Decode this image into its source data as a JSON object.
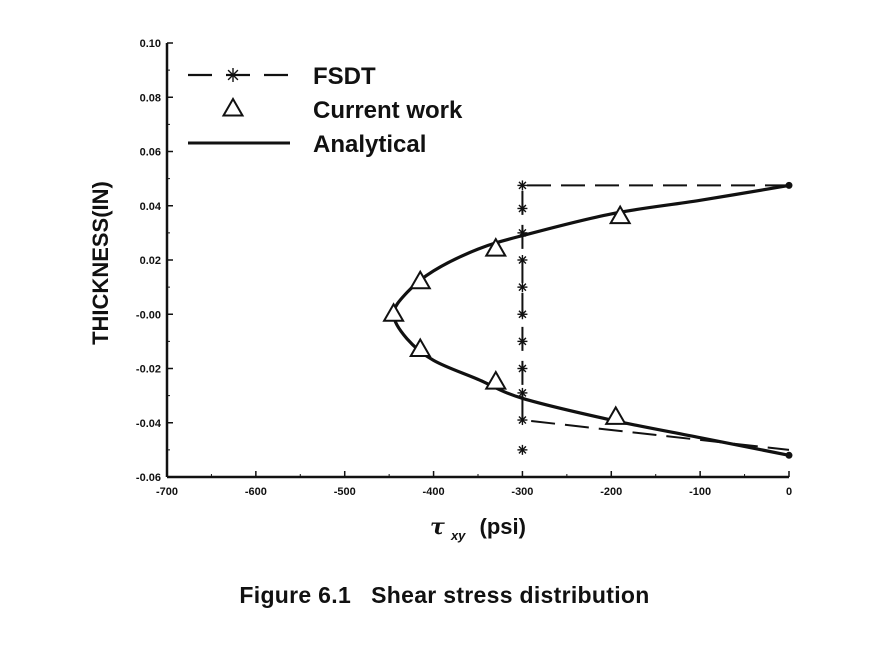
{
  "chart_data": {
    "type": "line",
    "xlabel_symbol": "τ",
    "xlabel_subscript": "xy",
    "xlabel_unit": "(psi)",
    "ylabel": "THICKNESS(IN)",
    "xlim": [
      -700,
      0
    ],
    "ylim": [
      -0.06,
      0.1
    ],
    "x_ticks": [
      -700,
      -600,
      -500,
      -400,
      -300,
      -200,
      -100,
      0
    ],
    "x_tick_labels": [
      "-700",
      "-600",
      "-500",
      "-400",
      "-300",
      "-200",
      "-100",
      "0"
    ],
    "y_ticks": [
      -0.06,
      -0.04,
      -0.02,
      0.0,
      0.02,
      0.04,
      0.06,
      0.08,
      0.1
    ],
    "y_tick_labels": [
      "-0.06",
      "-0.04",
      "-0.02",
      "-0.00",
      "0.02",
      "0.04",
      "0.06",
      "0.08",
      "0.10"
    ],
    "grid": false,
    "legend_position": "top-left",
    "series": [
      {
        "name": "FSDT",
        "style": "dashed-star",
        "x": [
          0,
          -300,
          -300,
          -300,
          -300,
          -300,
          -300,
          -300,
          -300,
          -300,
          -300,
          0
        ],
        "y": [
          0.0475,
          0.0475,
          0.039,
          0.03,
          0.02,
          0.01,
          0.0,
          -0.01,
          -0.02,
          -0.029,
          -0.039,
          -0.05
        ],
        "marker_y": [
          0.0475,
          0.039,
          0.03,
          0.02,
          0.01,
          0.0,
          -0.01,
          -0.02,
          -0.029,
          -0.039,
          -0.05
        ]
      },
      {
        "name": "Current work",
        "style": "triangle-markers",
        "x": [
          0,
          -190,
          -330,
          -415,
          -445,
          -415,
          -330,
          -195,
          0
        ],
        "y": [
          0.0475,
          0.036,
          0.024,
          0.012,
          0.0,
          -0.013,
          -0.025,
          -0.038,
          -0.052
        ]
      },
      {
        "name": "Analytical",
        "style": "solid",
        "x": [
          0,
          -100,
          -200,
          -300,
          -350,
          -400,
          -430,
          -445,
          -430,
          -400,
          -350,
          -300,
          -200,
          -100,
          0
        ],
        "y": [
          0.0475,
          0.042,
          0.037,
          0.029,
          0.024,
          0.016,
          0.008,
          0.0,
          -0.009,
          -0.017,
          -0.024,
          -0.031,
          -0.039,
          -0.0455,
          -0.052
        ]
      }
    ]
  },
  "caption": "Figure 6.1   Shear stress distribution",
  "colors": {
    "ink": "#111111",
    "background": "#ffffff"
  }
}
